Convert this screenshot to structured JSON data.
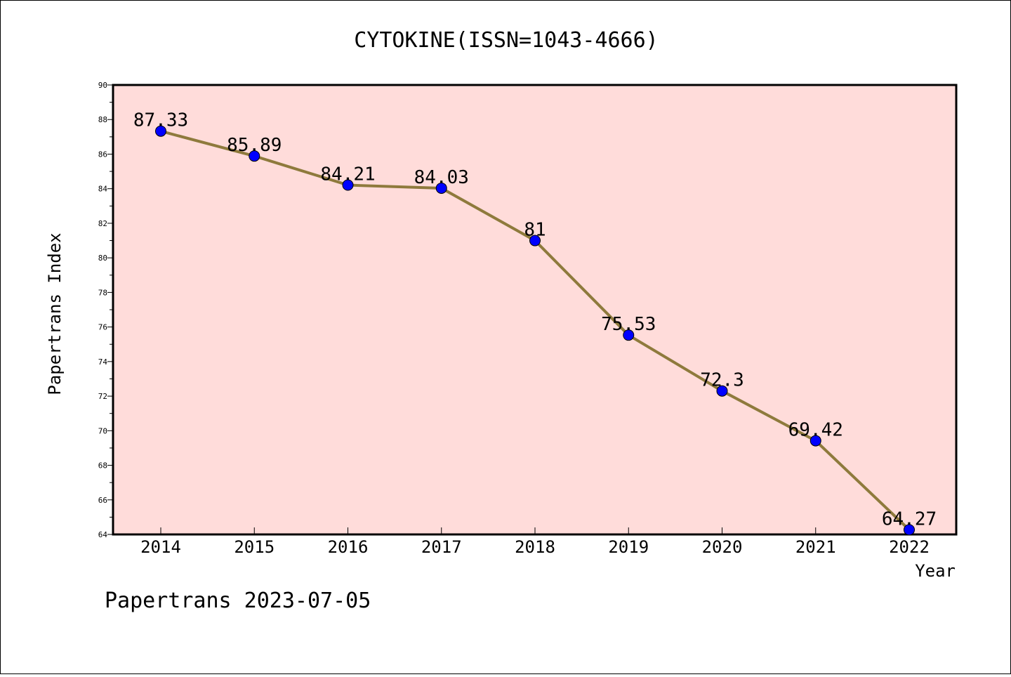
{
  "chart_data": {
    "type": "line",
    "title": "CYTOKINE(ISSN=1043-4666)",
    "xlabel": "Year",
    "ylabel": "Papertrans Index",
    "categories": [
      "2014",
      "2015",
      "2016",
      "2017",
      "2018",
      "2019",
      "2020",
      "2021",
      "2022"
    ],
    "series": [
      {
        "values": [
          87.33,
          85.89,
          84.21,
          84.03,
          81,
          75.53,
          72.3,
          69.42,
          64.27
        ],
        "labels": [
          "87.33",
          "85.89",
          "84.21",
          "84.03",
          "81",
          "75.53",
          "72.3",
          "69.42",
          "64.27"
        ]
      }
    ],
    "ylim": [
      64,
      90
    ],
    "yticks": [
      "64",
      "66",
      "68",
      "70",
      "72",
      "74",
      "76",
      "78",
      "80",
      "82",
      "84",
      "86",
      "88",
      "90"
    ],
    "grid": false,
    "colors": {
      "plot_background": "#FFDCDA",
      "line": "#8E7A3C",
      "marker": "#0000FF"
    }
  },
  "footer": "Papertrans 2023-07-05"
}
